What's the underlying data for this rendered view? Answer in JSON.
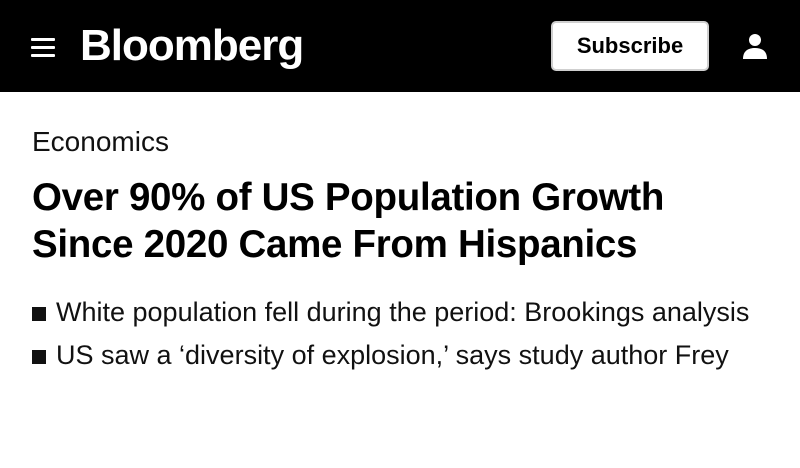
{
  "header": {
    "menu_icon": "hamburger-menu-icon",
    "logo_text": "Bloomberg",
    "subscribe_label": "Subscribe",
    "user_icon": "user-icon",
    "background_color": "#000000",
    "text_color": "#ffffff"
  },
  "article": {
    "section": "Economics",
    "headline": "Over 90% of US Population Growth Since 2020 Came From Hispanics",
    "bullets": [
      {
        "text": "White population fell during the period: Brookings analysis"
      },
      {
        "text": "US saw a ‘diversity of explosion,’ says study author Frey"
      }
    ]
  }
}
